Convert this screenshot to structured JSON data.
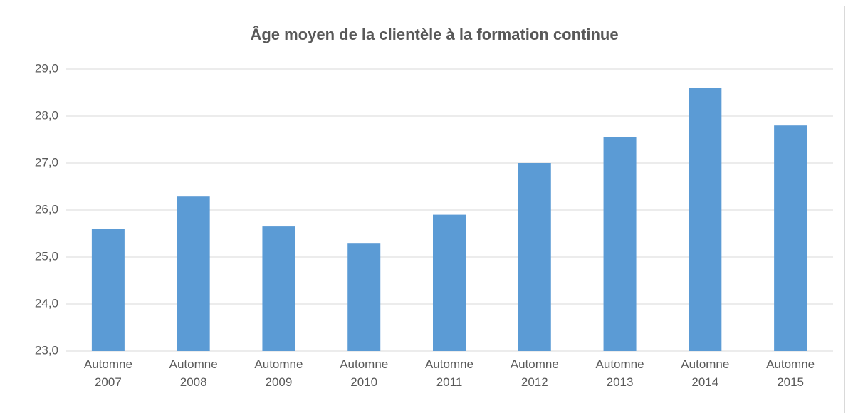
{
  "chart_data": {
    "type": "bar",
    "title": "Âge moyen de la clientèle à la formation continue",
    "categories": [
      "Automne 2007",
      "Automne 2008",
      "Automne 2009",
      "Automne 2010",
      "Automne 2011",
      "Automne 2012",
      "Automne 2013",
      "Automne 2014",
      "Automne 2015"
    ],
    "values": [
      25.6,
      26.3,
      25.65,
      25.3,
      25.9,
      27.0,
      27.55,
      28.6,
      27.8
    ],
    "color": "#5b9bd5",
    "ylim": [
      23,
      29
    ],
    "yticks": [
      {
        "value": 23,
        "label": "23,0"
      },
      {
        "value": 24,
        "label": "24,0"
      },
      {
        "value": 25,
        "label": "25,0"
      },
      {
        "value": 26,
        "label": "26,0"
      },
      {
        "value": 27,
        "label": "27,0"
      },
      {
        "value": 28,
        "label": "28,0"
      },
      {
        "value": 29,
        "label": "29,0"
      }
    ],
    "grid": true
  }
}
